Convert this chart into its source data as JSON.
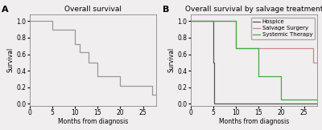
{
  "panel_A": {
    "title": "Overall survival",
    "xlabel": "Months from diagnosis",
    "ylabel": "Survival",
    "xlim": [
      0,
      28
    ],
    "ylim": [
      -0.02,
      1.08
    ],
    "xticks": [
      0,
      5,
      10,
      15,
      20,
      25
    ],
    "yticks": [
      0.0,
      0.2,
      0.4,
      0.6,
      0.8,
      1.0
    ],
    "yticklabels": [
      "0.0",
      "0.2",
      "0.4",
      "0.6",
      "0.8",
      "1.0"
    ],
    "color": "#999999",
    "steps_x": [
      0,
      5,
      5,
      10,
      10,
      11,
      11,
      13,
      13,
      15,
      15,
      20,
      20,
      27,
      27,
      28
    ],
    "steps_y": [
      1.0,
      1.0,
      0.9,
      0.9,
      0.72,
      0.72,
      0.62,
      0.62,
      0.5,
      0.5,
      0.33,
      0.33,
      0.22,
      0.22,
      0.11,
      0.11
    ]
  },
  "panel_B": {
    "title": "Overall survival by salvage treatment",
    "xlabel": "Months from diagnosis",
    "ylabel": "Survival",
    "xlim": [
      0,
      28
    ],
    "ylim": [
      -0.02,
      1.08
    ],
    "xticks": [
      0,
      5,
      10,
      15,
      20,
      25
    ],
    "yticks": [
      0.0,
      0.2,
      0.4,
      0.6,
      0.8,
      1.0
    ],
    "yticklabels": [
      "0.0",
      "0.2",
      "0.4",
      "0.6",
      "0.8",
      "1.0"
    ],
    "series": [
      {
        "label": "Hospice",
        "color": "#555555",
        "steps_x": [
          0,
          5,
          5,
          5.3,
          5.3,
          28
        ],
        "steps_y": [
          1.0,
          1.0,
          0.5,
          0.5,
          0.0,
          0.0
        ]
      },
      {
        "label": "Salvage Surgery",
        "color": "#d08888",
        "steps_x": [
          0,
          10,
          10,
          27,
          27,
          28
        ],
        "steps_y": [
          1.0,
          1.0,
          0.67,
          0.67,
          0.5,
          0.5
        ]
      },
      {
        "label": "Systemic Therapy",
        "color": "#44aa44",
        "steps_x": [
          0,
          10,
          10,
          15,
          15,
          20,
          20,
          28
        ],
        "steps_y": [
          1.0,
          1.0,
          0.67,
          0.67,
          0.33,
          0.33,
          0.05,
          0.05
        ]
      }
    ],
    "legend_loc": "upper right"
  },
  "fig_width": 4.0,
  "fig_height": 1.62,
  "dpi": 100,
  "label_A": "A",
  "label_B": "B",
  "background_color": "#f0eeee",
  "axis_bg_color": "#f0eeee",
  "axis_linewidth": 0.6,
  "tick_fontsize": 5.5,
  "label_fontsize": 5.5,
  "title_fontsize": 6.5,
  "legend_fontsize": 5.0,
  "line_width": 0.9
}
